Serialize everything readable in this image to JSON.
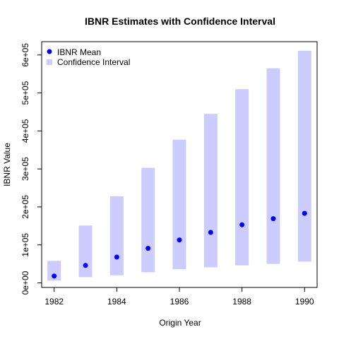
{
  "chart_data": {
    "type": "scatter",
    "title": "IBNR Estimates with Confidence Interval",
    "xlabel": "Origin Year",
    "ylabel": "IBNR Value",
    "xlim": [
      1981.6,
      1990.4
    ],
    "ylim": [
      -12000,
      635000
    ],
    "xticks": [
      1982,
      1984,
      1986,
      1988,
      1990
    ],
    "yticks": [
      0,
      100000,
      200000,
      300000,
      400000,
      500000,
      600000
    ],
    "ytick_labels": [
      "0e+00",
      "1e+05",
      "2e+05",
      "3e+05",
      "4e+05",
      "5e+05",
      "6e+05"
    ],
    "grid": false,
    "legend_position": "top-left",
    "series": [
      {
        "name": "IBNR Mean",
        "kind": "points",
        "color": "#0000ff",
        "x": [
          1982,
          1983,
          1984,
          1985,
          1986,
          1987,
          1988,
          1989,
          1990
        ],
        "values": [
          18000,
          46000,
          68000,
          91000,
          113000,
          133000,
          153000,
          169000,
          183000
        ]
      },
      {
        "name": "Confidence Interval",
        "kind": "interval",
        "color": "#ccccff",
        "x": [
          1982,
          1983,
          1984,
          1985,
          1986,
          1987,
          1988,
          1989,
          1990
        ],
        "lower": [
          6000,
          15000,
          20000,
          28000,
          36000,
          41000,
          46000,
          50000,
          56000
        ],
        "upper": [
          58000,
          151000,
          228000,
          303000,
          377000,
          445000,
          510000,
          565000,
          611000
        ]
      }
    ]
  }
}
